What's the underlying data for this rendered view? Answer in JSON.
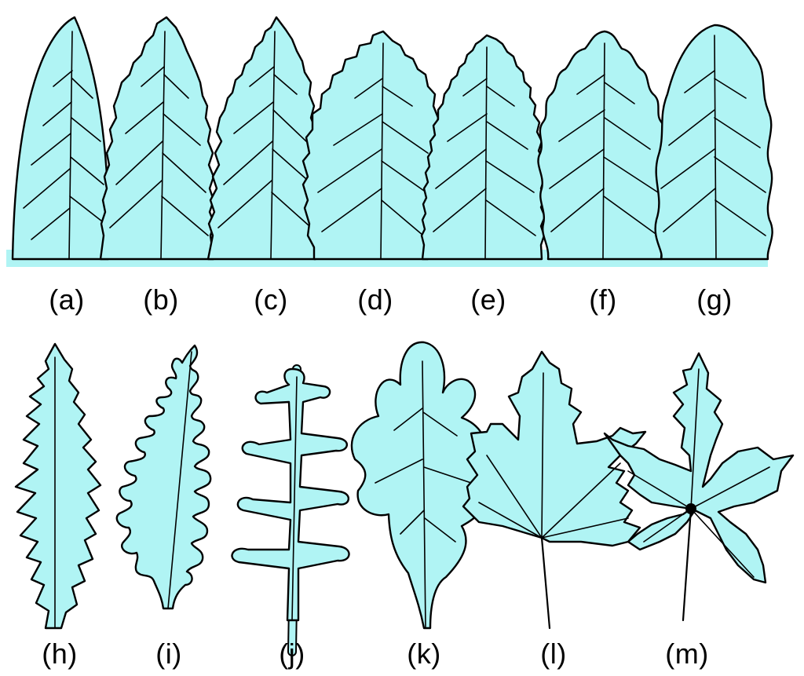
{
  "labels": {
    "a": "(a)",
    "b": "(b)",
    "c": "(c)",
    "d": "(d)",
    "e": "(e)",
    "f": "(f)",
    "g": "(g)",
    "h": "(h)",
    "i": "(i)",
    "j": "(j)",
    "k": "(k)",
    "l": "(l)",
    "m": "(m)"
  },
  "colors": {
    "leaf_fill": "#b0f4f4",
    "outline": "#000000",
    "background": "#ffffff"
  }
}
